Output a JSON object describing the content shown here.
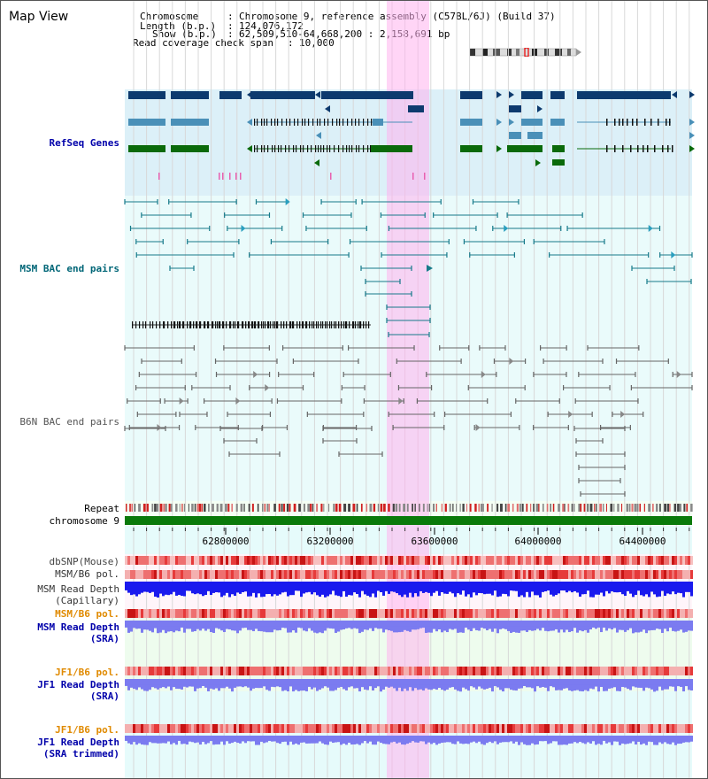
{
  "title": "Map View",
  "header": {
    "chromosome_key": "Chromosome",
    "chromosome_val": "Chromosome 9, reference assembly (C57BL/6J) (Build 37)",
    "length_key": "Length (b.p.)",
    "length_val": "124,076,172",
    "show_key": "Show (b.p.)",
    "show_val": "62,509,510-64,668,200 : 2,158,691 bp",
    "coverage_key": "Read coverage check span",
    "coverage_val": "10,000"
  },
  "tracks": [
    {
      "id": "refseq",
      "label": "RefSeq Genes",
      "color": "#0000aa"
    },
    {
      "id": "msm-bac",
      "label": "MSM BAC end pairs",
      "color": "#006677"
    },
    {
      "id": "b6n-bac",
      "label": "B6N BAC end pairs",
      "color": "#555555"
    },
    {
      "id": "repeat",
      "label": "Repeat",
      "color": "#000000"
    },
    {
      "id": "chromosome",
      "label": "chromosome 9",
      "color": "#000000"
    },
    {
      "id": "dbsnp",
      "label": "dbSNP(Mouse)",
      "color": "#444444"
    },
    {
      "id": "msm-b6-pol-1",
      "label": "MSM/B6 pol.",
      "color": "#333333"
    },
    {
      "id": "msm-depth-cap",
      "label": "MSM Read Depth\n(Capillary)",
      "color": "#333333"
    },
    {
      "id": "msm-b6-pol-2",
      "label": "MSM/B6 pol.",
      "color": "#e08a00"
    },
    {
      "id": "msm-depth-sra",
      "label": "MSM Read Depth\n(SRA)",
      "color": "#0000aa"
    },
    {
      "id": "jf1-b6-pol-1",
      "label": "JF1/B6 pol.",
      "color": "#e08a00"
    },
    {
      "id": "jf1-depth-sra",
      "label": "JF1 Read Depth\n(SRA)",
      "color": "#0000aa"
    },
    {
      "id": "jf1-b6-pol-2",
      "label": "JF1/B6 pol.",
      "color": "#e08a00"
    },
    {
      "id": "jf1-depth-trim",
      "label": "JF1 Read Depth\n(SRA trimmed)",
      "color": "#0000aa"
    }
  ],
  "axis": {
    "ticks": [
      "62800000",
      "63200000",
      "63600000",
      "64000000",
      "64400000"
    ]
  },
  "colors": {
    "gene_navy": "#0d3a6e",
    "gene_steel": "#4a90b8",
    "gene_green": "#0a6a0a",
    "highlight": "#ffb3ee",
    "snp_red": "#e03030",
    "depth_blue": "#1a1aee",
    "depth_violet": "#7b7bf0"
  }
}
